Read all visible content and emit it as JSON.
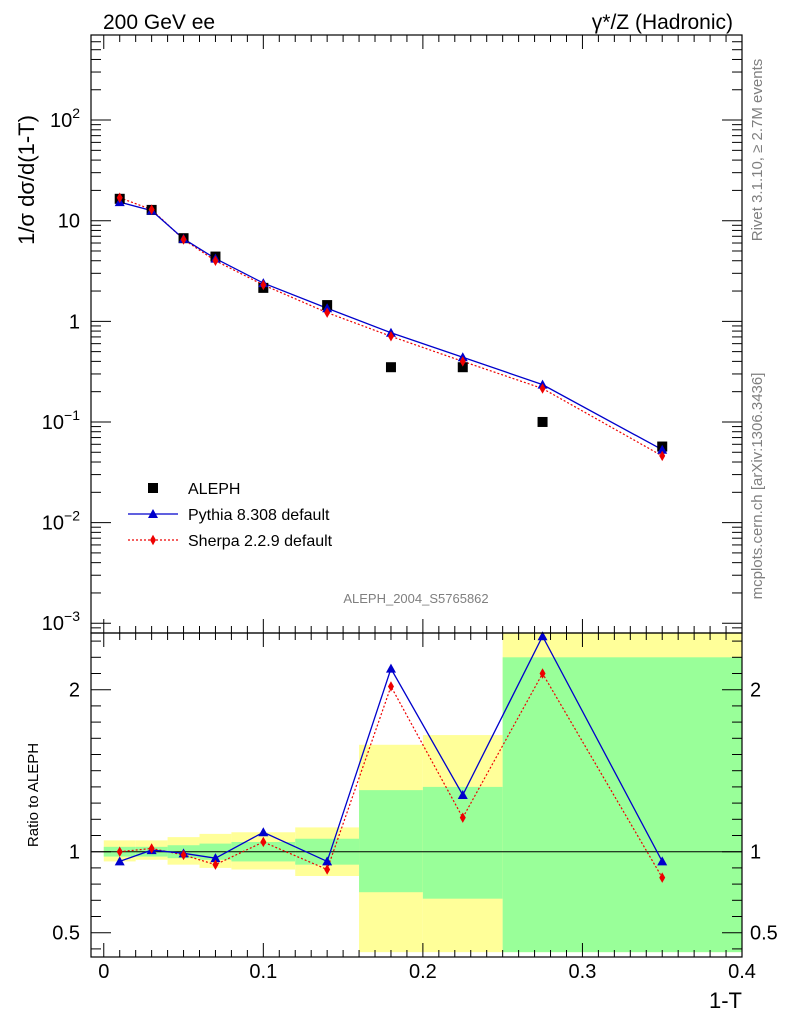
{
  "header": {
    "left_label": "200 GeV ee",
    "right_label": "γ*/Z (Hadronic)"
  },
  "side_texts": {
    "rivet": "Rivet 3.1.10, ≥ 2.7M events",
    "mcplots": "mcplots.cern.ch [arXiv:1306.3436]"
  },
  "colors": {
    "pythia": "#0000cc",
    "sherpa": "#ee0000",
    "data": "#000000",
    "band_outer": "#ffff99",
    "band_inner": "#99ff99"
  },
  "chart_data": [
    {
      "type": "scatter",
      "title": "",
      "watermark": "ALEPH_2004_S5765862",
      "xlabel": "",
      "ylabel": "1/σ  dσ/d(1-T)",
      "yscale": "log",
      "xlim": [
        -0.008,
        0.4
      ],
      "ylim": [
        0.0008,
        700
      ],
      "y_ticks": [
        {
          "value": 0.001,
          "base": "10",
          "exp": "−3"
        },
        {
          "value": 0.01,
          "base": "10",
          "exp": "−2"
        },
        {
          "value": 0.1,
          "base": "10",
          "exp": "−1"
        },
        {
          "value": 1,
          "base": "1",
          "exp": ""
        },
        {
          "value": 10,
          "base": "10",
          "exp": ""
        },
        {
          "value": 100,
          "base": "10",
          "exp": "2"
        }
      ],
      "x": [
        0.01,
        0.03,
        0.05,
        0.07,
        0.1,
        0.14,
        0.18,
        0.225,
        0.275,
        0.35
      ],
      "series": [
        {
          "name": "ALEPH",
          "marker": "square",
          "values": [
            16.5,
            12.8,
            6.7,
            4.4,
            2.15,
            1.45,
            0.35,
            0.35,
            0.1,
            0.057
          ]
        },
        {
          "name": "Pythia 8.308 default",
          "marker": "triangle",
          "line": "solid",
          "values": [
            15.3,
            12.6,
            6.6,
            4.2,
            2.4,
            1.35,
            0.77,
            0.44,
            0.235,
            0.053
          ]
        },
        {
          "name": "Sherpa 2.2.9 default",
          "marker": "diamond",
          "line": "dotted",
          "values": [
            16.9,
            12.9,
            6.5,
            4.0,
            2.3,
            1.22,
            0.71,
            0.4,
            0.215,
            0.046
          ]
        }
      ],
      "legend": "lower-left"
    },
    {
      "type": "line",
      "xlabel": "1-T",
      "ylabel": "Ratio to ALEPH",
      "xlim": [
        -0.008,
        0.4
      ],
      "ylim": [
        0.35,
        2.35
      ],
      "x_tick_labels": [
        "0",
        "0.1",
        "0.2",
        "0.3",
        "0.4"
      ],
      "y_tick_labels": [
        "0.5",
        "1",
        "2"
      ],
      "reference_line": 1,
      "x": [
        0.01,
        0.03,
        0.05,
        0.07,
        0.1,
        0.14,
        0.18,
        0.225,
        0.275,
        0.35
      ],
      "series": [
        {
          "name": "Pythia 8.308 default",
          "values": [
            0.94,
            1.01,
            0.99,
            0.96,
            1.12,
            0.94,
            2.13,
            1.35,
            2.33,
            0.94
          ]
        },
        {
          "name": "Sherpa 2.2.9 default",
          "values": [
            1.0,
            1.02,
            0.98,
            0.92,
            1.06,
            0.89,
            2.02,
            1.21,
            2.1,
            0.84
          ]
        }
      ],
      "uncertainty_bands": [
        {
          "x_range": [
            0.0,
            0.02
          ],
          "outer": [
            0.94,
            1.07
          ],
          "inner": [
            0.97,
            1.03
          ]
        },
        {
          "x_range": [
            0.02,
            0.04
          ],
          "outer": [
            0.95,
            1.07
          ],
          "inner": [
            0.97,
            1.03
          ]
        },
        {
          "x_range": [
            0.04,
            0.06
          ],
          "outer": [
            0.92,
            1.09
          ],
          "inner": [
            0.96,
            1.04
          ]
        },
        {
          "x_range": [
            0.06,
            0.08
          ],
          "outer": [
            0.9,
            1.11
          ],
          "inner": [
            0.95,
            1.05
          ]
        },
        {
          "x_range": [
            0.08,
            0.12
          ],
          "outer": [
            0.89,
            1.12
          ],
          "inner": [
            0.94,
            1.06
          ]
        },
        {
          "x_range": [
            0.12,
            0.16
          ],
          "outer": [
            0.85,
            1.15
          ],
          "inner": [
            0.92,
            1.08
          ]
        },
        {
          "x_range": [
            0.16,
            0.2
          ],
          "outer": [
            0.38,
            1.66
          ],
          "inner": [
            0.75,
            1.38
          ]
        },
        {
          "x_range": [
            0.2,
            0.25
          ],
          "outer": [
            0.38,
            1.72
          ],
          "inner": [
            0.71,
            1.4
          ]
        },
        {
          "x_range": [
            0.25,
            0.4
          ],
          "outer": [
            0.38,
            2.35
          ],
          "inner": [
            0.38,
            2.2
          ]
        }
      ]
    }
  ]
}
